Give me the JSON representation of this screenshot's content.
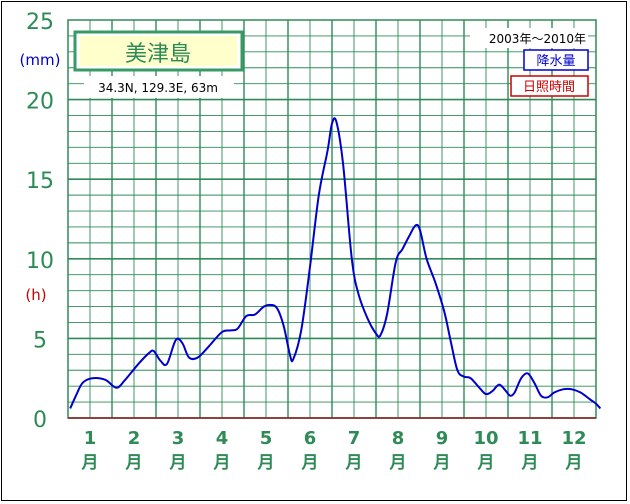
{
  "chart_data": {
    "type": "line",
    "station": {
      "name": "美津島",
      "location": "34.3N,  129.3E,  63m"
    },
    "period": "2003年〜2010年",
    "legend": {
      "precipitation": "降水量",
      "sunshine": "日照時間"
    },
    "y_unit_precip": "(mm)",
    "y_unit_sunshine": "(h)",
    "ylim": [
      0,
      25
    ],
    "y_ticks": [
      "0",
      "5",
      "10",
      "15",
      "20",
      "25"
    ],
    "months": [
      "1",
      "2",
      "3",
      "4",
      "5",
      "6",
      "7",
      "8",
      "9",
      "10",
      "11",
      "12"
    ],
    "month_suffix": "月",
    "series": [
      {
        "name": "降水量",
        "color": "#0000cc",
        "points": [
          [
            0.05,
            0.6
          ],
          [
            0.18,
            1.4
          ],
          [
            0.33,
            2.2
          ],
          [
            0.55,
            2.5
          ],
          [
            0.85,
            2.4
          ],
          [
            1.1,
            1.9
          ],
          [
            1.3,
            2.4
          ],
          [
            1.6,
            3.4
          ],
          [
            1.85,
            4.1
          ],
          [
            1.95,
            4.2
          ],
          [
            2.1,
            3.6
          ],
          [
            2.25,
            3.4
          ],
          [
            2.45,
            4.9
          ],
          [
            2.6,
            4.7
          ],
          [
            2.75,
            3.8
          ],
          [
            2.95,
            3.8
          ],
          [
            3.2,
            4.5
          ],
          [
            3.5,
            5.4
          ],
          [
            3.7,
            5.5
          ],
          [
            3.85,
            5.6
          ],
          [
            4.05,
            6.4
          ],
          [
            4.25,
            6.5
          ],
          [
            4.45,
            7.0
          ],
          [
            4.6,
            7.1
          ],
          [
            4.75,
            6.9
          ],
          [
            4.9,
            5.8
          ],
          [
            5.05,
            3.9
          ],
          [
            5.12,
            3.7
          ],
          [
            5.3,
            5.5
          ],
          [
            5.5,
            9.5
          ],
          [
            5.7,
            14.0
          ],
          [
            5.9,
            16.8
          ],
          [
            6.0,
            18.5
          ],
          [
            6.1,
            18.6
          ],
          [
            6.25,
            16.0
          ],
          [
            6.45,
            10.0
          ],
          [
            6.6,
            7.8
          ],
          [
            6.8,
            6.3
          ],
          [
            7.0,
            5.3
          ],
          [
            7.1,
            5.2
          ],
          [
            7.25,
            6.5
          ],
          [
            7.45,
            9.8
          ],
          [
            7.6,
            10.6
          ],
          [
            7.75,
            11.4
          ],
          [
            7.9,
            12.1
          ],
          [
            8.0,
            11.8
          ],
          [
            8.15,
            10.0
          ],
          [
            8.35,
            8.5
          ],
          [
            8.55,
            6.7
          ],
          [
            8.7,
            4.8
          ],
          [
            8.85,
            3.0
          ],
          [
            9.0,
            2.6
          ],
          [
            9.15,
            2.5
          ],
          [
            9.35,
            1.9
          ],
          [
            9.5,
            1.5
          ],
          [
            9.65,
            1.7
          ],
          [
            9.8,
            2.1
          ],
          [
            9.95,
            1.7
          ],
          [
            10.05,
            1.4
          ],
          [
            10.15,
            1.6
          ],
          [
            10.3,
            2.5
          ],
          [
            10.45,
            2.8
          ],
          [
            10.6,
            2.2
          ],
          [
            10.75,
            1.4
          ],
          [
            10.9,
            1.3
          ],
          [
            11.05,
            1.6
          ],
          [
            11.25,
            1.8
          ],
          [
            11.45,
            1.8
          ],
          [
            11.65,
            1.6
          ],
          [
            11.85,
            1.2
          ],
          [
            12.0,
            0.9
          ],
          [
            12.1,
            0.6
          ]
        ]
      },
      {
        "name": "日照時間",
        "color": "#cc0000",
        "points": []
      }
    ]
  }
}
